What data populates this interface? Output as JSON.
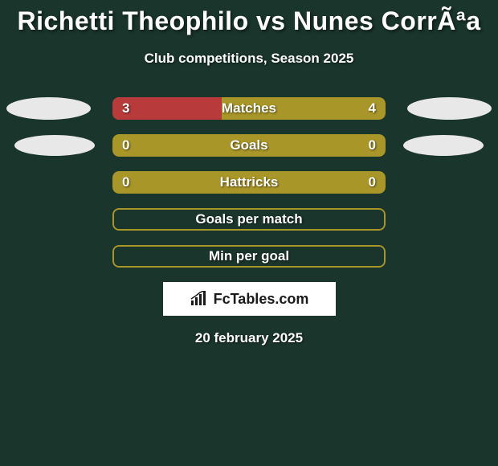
{
  "title": "Richetti Theophilo vs Nunes CorrÃªa",
  "subtitle": "Club competitions, Season 2025",
  "date": "20 february 2025",
  "logo_text": "FcTables.com",
  "colors": {
    "background": "#1a352b",
    "bar_olive": "#a99628",
    "bar_red": "#b83a3a",
    "ellipse": "#e8e8e8",
    "text": "#ffffff"
  },
  "rows": [
    {
      "label": "Matches",
      "left_val": "3",
      "right_val": "4",
      "left_pct": 40,
      "left_color": "#b83a3a",
      "right_color": "#a99628",
      "show_ellipses": "wide",
      "border_only": false
    },
    {
      "label": "Goals",
      "left_val": "0",
      "right_val": "0",
      "left_pct": 100,
      "left_color": "#a99628",
      "right_color": "#a99628",
      "show_ellipses": "narrow",
      "border_only": false
    },
    {
      "label": "Hattricks",
      "left_val": "0",
      "right_val": "0",
      "left_pct": 100,
      "left_color": "#a99628",
      "right_color": "#a99628",
      "show_ellipses": "none",
      "border_only": false
    },
    {
      "label": "Goals per match",
      "left_val": "",
      "right_val": "",
      "left_pct": 0,
      "left_color": "#a99628",
      "right_color": "#a99628",
      "show_ellipses": "none",
      "border_only": true
    },
    {
      "label": "Min per goal",
      "left_val": "",
      "right_val": "",
      "left_pct": 0,
      "left_color": "#a99628",
      "right_color": "#a99628",
      "show_ellipses": "none",
      "border_only": true
    }
  ]
}
